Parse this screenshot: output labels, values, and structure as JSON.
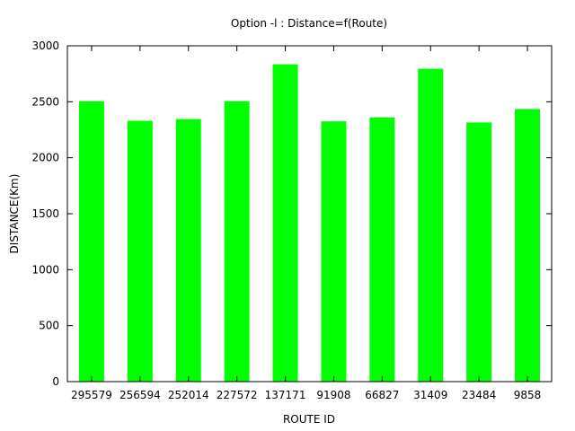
{
  "chart_data": {
    "type": "bar",
    "title": "Option -l : Distance=f(Route)",
    "xlabel": "ROUTE ID",
    "ylabel": "DISTANCE(Km)",
    "ylim": [
      0,
      3000
    ],
    "yticks": [
      "0",
      "500",
      "1000",
      "1500",
      "2000",
      "2500",
      "3000"
    ],
    "grid": false,
    "categories": [
      "295579",
      "256594",
      "252014",
      "227572",
      "137171",
      "91908",
      "66827",
      "31409",
      "23484",
      "9858"
    ],
    "values": [
      2505,
      2330,
      2345,
      2505,
      2835,
      2325,
      2360,
      2795,
      2315,
      2435
    ],
    "bar_color": "#00ff00"
  }
}
